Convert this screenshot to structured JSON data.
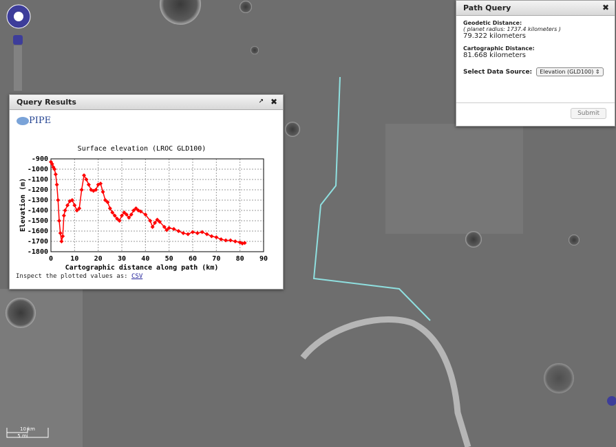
{
  "map": {
    "scale_km": "10 km",
    "scale_mi": "5 mi"
  },
  "path_query": {
    "title": "Path Query",
    "geodetic_label": "Geodetic Distance:",
    "planet_radius": "( planet radius: 1737.4 kilometers )",
    "geodetic_value": "79.322 kilometers",
    "cartographic_label": "Cartographic Distance:",
    "cartographic_value": "81.668 kilometers",
    "data_source_label": "Select Data Source:",
    "data_source": "Elevation (GLD100)",
    "submit": "Submit"
  },
  "query_results": {
    "title": "Query Results",
    "logo": "PIPE",
    "inspect_text": "Inspect the plotted values as:",
    "csv_link": "CSV",
    "chart": {
      "type": "line",
      "title": "Surface elevation (LROC GLD100)",
      "x_label": "Cartographic distance along path (km)",
      "y_label": "Elevation (m)",
      "xlim": [
        0,
        90
      ],
      "xticks": [
        0,
        10,
        20,
        30,
        40,
        50,
        60,
        70,
        80,
        90
      ],
      "ylim": [
        -1800,
        -900
      ],
      "yticks": [
        -900,
        -1000,
        -1100,
        -1200,
        -1300,
        -1400,
        -1500,
        -1600,
        -1700,
        -1800
      ],
      "grid": true,
      "series": [
        {
          "color": "#ff0000",
          "x": [
            0,
            0.5,
            1,
            1.5,
            2,
            2.5,
            3,
            3.5,
            4,
            4.5,
            5,
            5.5,
            6,
            7,
            8,
            9,
            10,
            11,
            12,
            13,
            14,
            15,
            16,
            17,
            18,
            19,
            20,
            21,
            22,
            23,
            24,
            25,
            26,
            27,
            28,
            29,
            30,
            31,
            32,
            33,
            34,
            35,
            36,
            37,
            38,
            40,
            42,
            43,
            44,
            45,
            46,
            48,
            49,
            50,
            52,
            54,
            56,
            58,
            60,
            62,
            64,
            66,
            68,
            70,
            72,
            74,
            76,
            78,
            80,
            81,
            82
          ],
          "values": [
            -930,
            -950,
            -980,
            -1000,
            -1050,
            -1150,
            -1300,
            -1500,
            -1620,
            -1700,
            -1650,
            -1450,
            -1400,
            -1350,
            -1310,
            -1300,
            -1350,
            -1400,
            -1380,
            -1200,
            -1060,
            -1100,
            -1150,
            -1200,
            -1210,
            -1200,
            -1150,
            -1140,
            -1220,
            -1300,
            -1320,
            -1380,
            -1420,
            -1450,
            -1480,
            -1500,
            -1450,
            -1420,
            -1440,
            -1470,
            -1440,
            -1400,
            -1380,
            -1400,
            -1410,
            -1440,
            -1500,
            -1560,
            -1520,
            -1490,
            -1510,
            -1560,
            -1590,
            -1570,
            -1580,
            -1600,
            -1620,
            -1630,
            -1610,
            -1620,
            -1610,
            -1630,
            -1650,
            -1660,
            -1680,
            -1690,
            -1690,
            -1700,
            -1710,
            -1720,
            -1715
          ]
        }
      ]
    }
  }
}
